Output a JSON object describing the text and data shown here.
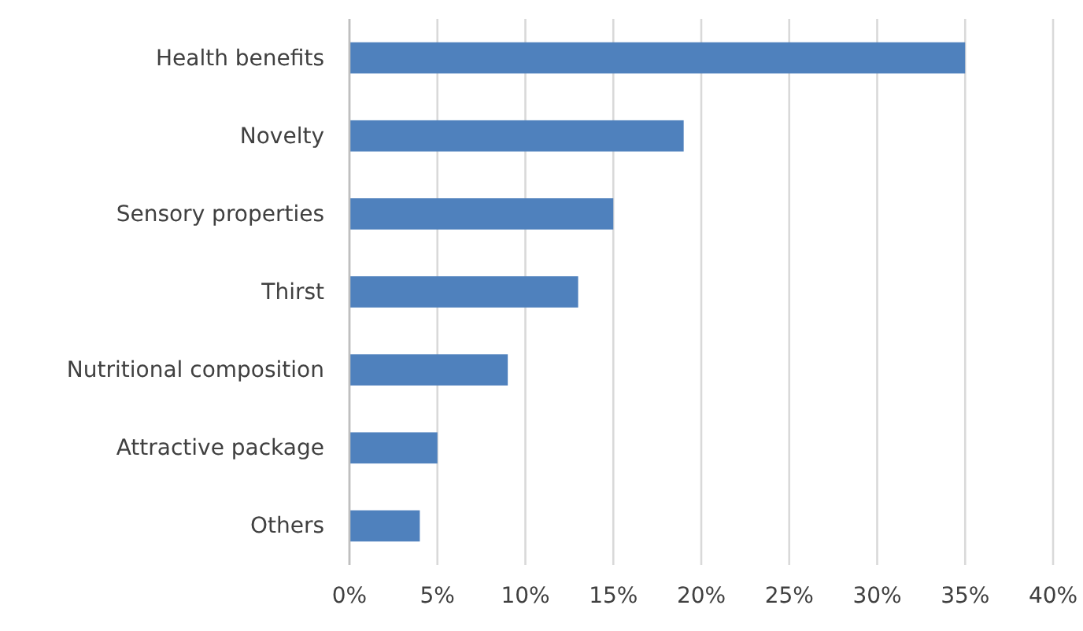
{
  "chart_data": {
    "type": "bar",
    "orientation": "horizontal",
    "categories": [
      "Health benefits",
      "Novelty",
      "Sensory properties",
      "Thirst",
      "Nutritional composition",
      "Attractive package",
      "Others"
    ],
    "values": [
      35,
      19,
      15,
      13,
      9,
      5,
      4
    ],
    "color": "#4f81bd",
    "xlim": [
      0,
      40
    ],
    "xticks": [
      {
        "value": 0,
        "label": "0%"
      },
      {
        "value": 5,
        "label": "5%"
      },
      {
        "value": 10,
        "label": "10%"
      },
      {
        "value": 15,
        "label": "15%"
      },
      {
        "value": 20,
        "label": "20%"
      },
      {
        "value": 25,
        "label": "25%"
      },
      {
        "value": 30,
        "label": "30%"
      },
      {
        "value": 35,
        "label": "35%"
      },
      {
        "value": 40,
        "label": "40%"
      }
    ],
    "grid": "x"
  }
}
